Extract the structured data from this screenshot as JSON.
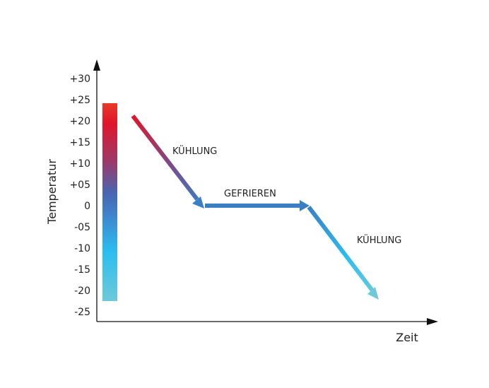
{
  "diagram": {
    "y_axis_label": "Temperatur",
    "x_axis_label": "Zeit",
    "y_ticks": [
      "+30",
      "+25",
      "+20",
      "+15",
      "+10",
      "+05",
      "0",
      "-05",
      "-10",
      "-15",
      "-20",
      "-25"
    ],
    "phases": [
      {
        "label": "KÜHLUNG"
      },
      {
        "label": "GEFRIEREN"
      },
      {
        "label": "KÜHLUNG"
      }
    ],
    "colors": {
      "hot": "#e5202a",
      "mid": "#3a7fc4",
      "cold": "#6ec9d8",
      "ice": "#2bbdf0",
      "axis": "#111111"
    }
  }
}
